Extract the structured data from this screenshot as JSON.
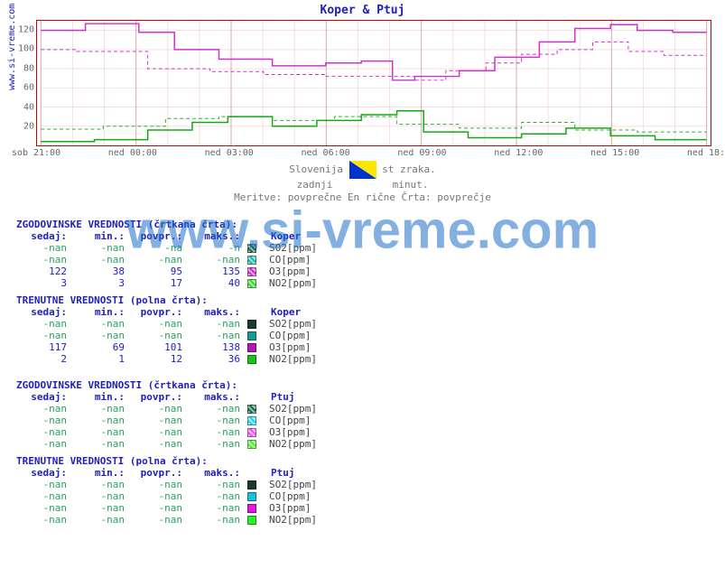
{
  "title": "Koper & Ptuj",
  "source_label": "www.si-vreme.com",
  "watermark": "www.si-vreme.com",
  "info_line_1a": "Slovenija",
  "info_line_1b": "st zraka.",
  "info_line_2a": "zadnji",
  "info_line_2b": "minut.",
  "info_line_3": "Meritve: povprečne  En        rične  Črta: povprečje",
  "chart": {
    "type": "line-step",
    "background": "#ffffff",
    "border_color": "#cc0000",
    "grid_color": "rgba(200,0,0,0.12)",
    "ylim": [
      0,
      130
    ],
    "yticks": [
      20,
      40,
      60,
      80,
      100,
      120
    ],
    "xlabels": [
      "sob 21:00",
      "ned 00:00",
      "ned 03:00",
      "ned 06:00",
      "ned 09:00",
      "ned 12:00",
      "ned 15:00",
      "ned 18:00"
    ],
    "xmajor_every": 3,
    "xminor_per_major": 3,
    "series": [
      {
        "name": "O3 Koper dashed",
        "color": "#cc33cc",
        "dash": true,
        "width": 1,
        "points": [
          [
            0,
            100
          ],
          [
            40,
            100
          ],
          [
            40,
            98
          ],
          [
            120,
            98
          ],
          [
            120,
            80
          ],
          [
            190,
            80
          ],
          [
            190,
            77
          ],
          [
            250,
            77
          ],
          [
            250,
            74
          ],
          [
            320,
            74
          ],
          [
            320,
            72
          ],
          [
            420,
            72
          ],
          [
            420,
            68
          ],
          [
            455,
            68
          ],
          [
            455,
            78
          ],
          [
            500,
            78
          ],
          [
            500,
            86
          ],
          [
            540,
            86
          ],
          [
            540,
            95
          ],
          [
            580,
            95
          ],
          [
            580,
            100
          ],
          [
            620,
            100
          ],
          [
            620,
            108
          ],
          [
            660,
            108
          ],
          [
            660,
            98
          ],
          [
            700,
            98
          ],
          [
            700,
            94
          ],
          [
            748,
            94
          ]
        ]
      },
      {
        "name": "O3 Koper solid",
        "color": "#cc33cc",
        "dash": false,
        "width": 1.5,
        "points": [
          [
            0,
            120
          ],
          [
            50,
            120
          ],
          [
            50,
            127
          ],
          [
            110,
            127
          ],
          [
            110,
            118
          ],
          [
            150,
            118
          ],
          [
            150,
            100
          ],
          [
            200,
            100
          ],
          [
            200,
            90
          ],
          [
            260,
            90
          ],
          [
            260,
            83
          ],
          [
            320,
            83
          ],
          [
            320,
            86
          ],
          [
            360,
            86
          ],
          [
            360,
            88
          ],
          [
            395,
            88
          ],
          [
            395,
            68
          ],
          [
            420,
            68
          ],
          [
            420,
            72
          ],
          [
            470,
            72
          ],
          [
            470,
            78
          ],
          [
            510,
            78
          ],
          [
            510,
            92
          ],
          [
            560,
            92
          ],
          [
            560,
            108
          ],
          [
            600,
            108
          ],
          [
            600,
            122
          ],
          [
            640,
            122
          ],
          [
            640,
            126
          ],
          [
            670,
            126
          ],
          [
            670,
            120
          ],
          [
            710,
            120
          ],
          [
            710,
            118
          ],
          [
            748,
            118
          ]
        ]
      },
      {
        "name": "NO2 dashed",
        "color": "#33aa33",
        "dash": true,
        "width": 1,
        "points": [
          [
            0,
            17
          ],
          [
            70,
            17
          ],
          [
            70,
            20
          ],
          [
            140,
            20
          ],
          [
            140,
            28
          ],
          [
            200,
            28
          ],
          [
            200,
            30
          ],
          [
            260,
            30
          ],
          [
            260,
            26
          ],
          [
            330,
            26
          ],
          [
            330,
            30
          ],
          [
            400,
            30
          ],
          [
            400,
            22
          ],
          [
            470,
            22
          ],
          [
            470,
            18
          ],
          [
            540,
            18
          ],
          [
            540,
            24
          ],
          [
            600,
            24
          ],
          [
            600,
            16
          ],
          [
            670,
            16
          ],
          [
            670,
            14
          ],
          [
            748,
            14
          ]
        ]
      },
      {
        "name": "NO2 solid",
        "color": "#11aa11",
        "dash": false,
        "width": 1.5,
        "points": [
          [
            0,
            4
          ],
          [
            60,
            4
          ],
          [
            60,
            6
          ],
          [
            120,
            6
          ],
          [
            120,
            16
          ],
          [
            170,
            16
          ],
          [
            170,
            24
          ],
          [
            210,
            24
          ],
          [
            210,
            30
          ],
          [
            260,
            30
          ],
          [
            260,
            20
          ],
          [
            310,
            20
          ],
          [
            310,
            26
          ],
          [
            360,
            26
          ],
          [
            360,
            32
          ],
          [
            400,
            32
          ],
          [
            400,
            36
          ],
          [
            430,
            36
          ],
          [
            430,
            14
          ],
          [
            480,
            14
          ],
          [
            480,
            8
          ],
          [
            540,
            8
          ],
          [
            540,
            12
          ],
          [
            590,
            12
          ],
          [
            590,
            18
          ],
          [
            640,
            18
          ],
          [
            640,
            10
          ],
          [
            690,
            10
          ],
          [
            690,
            6
          ],
          [
            748,
            6
          ]
        ]
      }
    ]
  },
  "tables": [
    {
      "title": "ZGODOVINSKE VREDNOSTI (črtkana črta):",
      "location": "Koper",
      "headers": [
        "sedaj:",
        "min.:",
        "povpr.:",
        "maks.:"
      ],
      "rows": [
        {
          "vals": [
            "-nan",
            "-nan",
            "-na",
            "-n"
          ],
          "types": [
            "nan",
            "nan",
            "nan",
            "nan"
          ],
          "swatch": "#1a6b4a",
          "hatch": true,
          "param": "SO2[ppm]"
        },
        {
          "vals": [
            "-nan",
            "-nan",
            "-nan",
            "-nan"
          ],
          "types": [
            "nan",
            "nan",
            "nan",
            "nan"
          ],
          "swatch": "#1fb5b0",
          "hatch": true,
          "param": "CO[ppm]"
        },
        {
          "vals": [
            "122",
            "38",
            "95",
            "135"
          ],
          "types": [
            "num",
            "num",
            "num",
            "num"
          ],
          "swatch": "#cc33cc",
          "hatch": true,
          "param": "O3[ppm]"
        },
        {
          "vals": [
            "3",
            "3",
            "17",
            "40"
          ],
          "types": [
            "num",
            "num",
            "num",
            "num"
          ],
          "swatch": "#33dd33",
          "hatch": true,
          "param": "NO2[ppm]"
        }
      ]
    },
    {
      "title": "TRENUTNE VREDNOSTI (polna črta):",
      "location": "Koper",
      "headers": [
        "sedaj:",
        "min.:",
        "povpr.:",
        "maks.:"
      ],
      "rows": [
        {
          "vals": [
            "-nan",
            "-nan",
            "-nan",
            "-nan"
          ],
          "types": [
            "nan",
            "nan",
            "nan",
            "nan"
          ],
          "swatch": "#1a3b2a",
          "hatch": false,
          "param": "SO2[ppm]"
        },
        {
          "vals": [
            "-nan",
            "-nan",
            "-nan",
            "-nan"
          ],
          "types": [
            "nan",
            "nan",
            "nan",
            "nan"
          ],
          "swatch": "#159a94",
          "hatch": false,
          "param": "CO[ppm]"
        },
        {
          "vals": [
            "117",
            "69",
            "101",
            "138"
          ],
          "types": [
            "num",
            "num",
            "num",
            "num"
          ],
          "swatch": "#b515b5",
          "hatch": false,
          "param": "O3[ppm]"
        },
        {
          "vals": [
            "2",
            "1",
            "12",
            "36"
          ],
          "types": [
            "num",
            "num",
            "num",
            "num"
          ],
          "swatch": "#1ac21a",
          "hatch": false,
          "param": "NO2[ppm]"
        }
      ]
    },
    {
      "title": "ZGODOVINSKE VREDNOSTI (črtkana črta):",
      "location": "Ptuj",
      "headers": [
        "sedaj:",
        "min.:",
        "povpr.:",
        "maks.:"
      ],
      "rows": [
        {
          "vals": [
            "-nan",
            "-nan",
            "-nan",
            "-nan"
          ],
          "types": [
            "nan",
            "nan",
            "nan",
            "nan"
          ],
          "swatch": "#1a6b4a",
          "hatch": true,
          "param": "SO2[ppm]"
        },
        {
          "vals": [
            "-nan",
            "-nan",
            "-nan",
            "-nan"
          ],
          "types": [
            "nan",
            "nan",
            "nan",
            "nan"
          ],
          "swatch": "#1fd5f0",
          "hatch": true,
          "param": "CO[ppm]"
        },
        {
          "vals": [
            "-nan",
            "-nan",
            "-nan",
            "-nan"
          ],
          "types": [
            "nan",
            "nan",
            "nan",
            "nan"
          ],
          "swatch": "#ee55ee",
          "hatch": true,
          "param": "O3[ppm]"
        },
        {
          "vals": [
            "-nan",
            "-nan",
            "-nan",
            "-nan"
          ],
          "types": [
            "nan",
            "nan",
            "nan",
            "nan"
          ],
          "swatch": "#55ee33",
          "hatch": true,
          "param": "NO2[ppm]"
        }
      ]
    },
    {
      "title": "TRENUTNE VREDNOSTI (polna črta):",
      "location": "Ptuj",
      "headers": [
        "sedaj:",
        "min.:",
        "povpr.:",
        "maks.:"
      ],
      "rows": [
        {
          "vals": [
            "-nan",
            "-nan",
            "-nan",
            "-nan"
          ],
          "types": [
            "nan",
            "nan",
            "nan",
            "nan"
          ],
          "swatch": "#1a3b2a",
          "hatch": false,
          "param": "SO2[ppm]"
        },
        {
          "vals": [
            "-nan",
            "-nan",
            "-nan",
            "-nan"
          ],
          "types": [
            "nan",
            "nan",
            "nan",
            "nan"
          ],
          "swatch": "#15c0e0",
          "hatch": false,
          "param": "CO[ppm]"
        },
        {
          "vals": [
            "-nan",
            "-nan",
            "-nan",
            "-nan"
          ],
          "types": [
            "nan",
            "nan",
            "nan",
            "nan"
          ],
          "swatch": "#e515e5",
          "hatch": false,
          "param": "O3[ppm]"
        },
        {
          "vals": [
            "-nan",
            "-nan",
            "-nan",
            "-nan"
          ],
          "types": [
            "nan",
            "nan",
            "nan",
            "nan"
          ],
          "swatch": "#2aee2a",
          "hatch": false,
          "param": "NO2[ppm]"
        }
      ]
    }
  ]
}
